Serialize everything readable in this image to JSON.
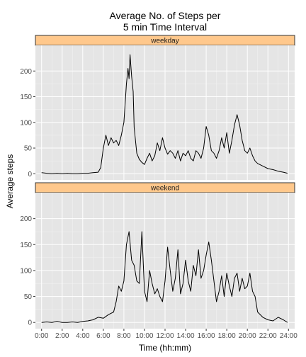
{
  "chart_data": {
    "type": "line",
    "title_lines": [
      "Average No. of Steps per",
      "5 min Time Interval"
    ],
    "xlabel": "Time (hh:mm)",
    "ylabel": "Average steps",
    "x_unit": "hours",
    "xlim": [
      -0.6,
      24.6
    ],
    "ylim": [
      -12,
      250
    ],
    "x_ticks": [
      0,
      2,
      4,
      6,
      8,
      10,
      12,
      14,
      16,
      18,
      20,
      22,
      24
    ],
    "x_tick_labels": [
      "0:00",
      "2:00",
      "4:00",
      "6:00",
      "8:00",
      "10:00",
      "12:00",
      "14:00",
      "16:00",
      "18:00",
      "20:00",
      "22:00",
      "24:00"
    ],
    "y_ticks": [
      0,
      50,
      100,
      150,
      200
    ],
    "grid": true,
    "legend": "none",
    "colors": {
      "panel_bg": "#e5e5e5",
      "grid_major": "#ffffff",
      "strip_bg": "#ffc88c",
      "line": "#000000"
    },
    "panels": [
      {
        "label": "weekday",
        "x": [
          0,
          0.5,
          1,
          1.5,
          2,
          2.5,
          3,
          3.5,
          4,
          4.5,
          5,
          5.5,
          5.75,
          6,
          6.25,
          6.5,
          6.75,
          7,
          7.25,
          7.5,
          7.75,
          8,
          8.25,
          8.4,
          8.5,
          8.6,
          8.75,
          8.9,
          9,
          9.25,
          9.5,
          9.75,
          10,
          10.25,
          10.5,
          10.75,
          11,
          11.25,
          11.5,
          11.75,
          12,
          12.25,
          12.5,
          12.75,
          13,
          13.25,
          13.5,
          13.75,
          14,
          14.25,
          14.5,
          14.75,
          15,
          15.25,
          15.5,
          15.75,
          16,
          16.25,
          16.5,
          16.75,
          17,
          17.25,
          17.5,
          17.75,
          18,
          18.25,
          18.5,
          18.75,
          19,
          19.25,
          19.5,
          19.75,
          20,
          20.25,
          20.5,
          20.75,
          21,
          21.5,
          22,
          22.5,
          23,
          23.5,
          23.9
        ],
        "y": [
          2,
          1,
          0,
          1,
          0,
          1,
          0,
          0,
          1,
          1,
          2,
          3,
          12,
          50,
          75,
          55,
          70,
          60,
          65,
          55,
          75,
          100,
          175,
          205,
          185,
          232,
          190,
          160,
          90,
          40,
          28,
          22,
          18,
          30,
          40,
          25,
          35,
          60,
          45,
          70,
          50,
          38,
          45,
          40,
          30,
          45,
          25,
          40,
          35,
          45,
          30,
          25,
          45,
          40,
          30,
          50,
          92,
          75,
          45,
          40,
          30,
          45,
          70,
          50,
          80,
          40,
          65,
          95,
          115,
          95,
          65,
          45,
          40,
          50,
          35,
          25,
          20,
          15,
          10,
          8,
          5,
          3,
          1
        ]
      },
      {
        "label": "weekend",
        "x": [
          0,
          0.5,
          1,
          1.5,
          2,
          2.5,
          3,
          3.5,
          4,
          4.5,
          5,
          5.5,
          6,
          6.5,
          7,
          7.25,
          7.5,
          7.75,
          8,
          8.25,
          8.5,
          8.75,
          9,
          9.25,
          9.5,
          9.75,
          10,
          10.25,
          10.5,
          10.75,
          11,
          11.25,
          11.5,
          11.75,
          12,
          12.25,
          12.5,
          12.75,
          13,
          13.25,
          13.5,
          13.75,
          14,
          14.25,
          14.5,
          14.75,
          15,
          15.25,
          15.5,
          15.75,
          16,
          16.25,
          16.5,
          16.75,
          17,
          17.25,
          17.5,
          17.75,
          18,
          18.25,
          18.5,
          18.75,
          19,
          19.25,
          19.5,
          19.75,
          20,
          20.25,
          20.5,
          20.75,
          21,
          21.5,
          22,
          22.5,
          23,
          23.5,
          23.9
        ],
        "y": [
          0,
          1,
          0,
          2,
          0,
          0,
          1,
          0,
          2,
          3,
          5,
          10,
          8,
          15,
          20,
          40,
          70,
          60,
          80,
          150,
          175,
          120,
          110,
          80,
          75,
          175,
          60,
          40,
          100,
          75,
          55,
          65,
          50,
          40,
          80,
          145,
          100,
          60,
          85,
          140,
          55,
          75,
          120,
          80,
          60,
          110,
          90,
          140,
          85,
          100,
          130,
          155,
          120,
          80,
          40,
          60,
          90,
          50,
          95,
          70,
          50,
          85,
          95,
          60,
          85,
          65,
          70,
          95,
          60,
          50,
          20,
          10,
          5,
          3,
          10,
          5,
          0
        ]
      }
    ]
  }
}
